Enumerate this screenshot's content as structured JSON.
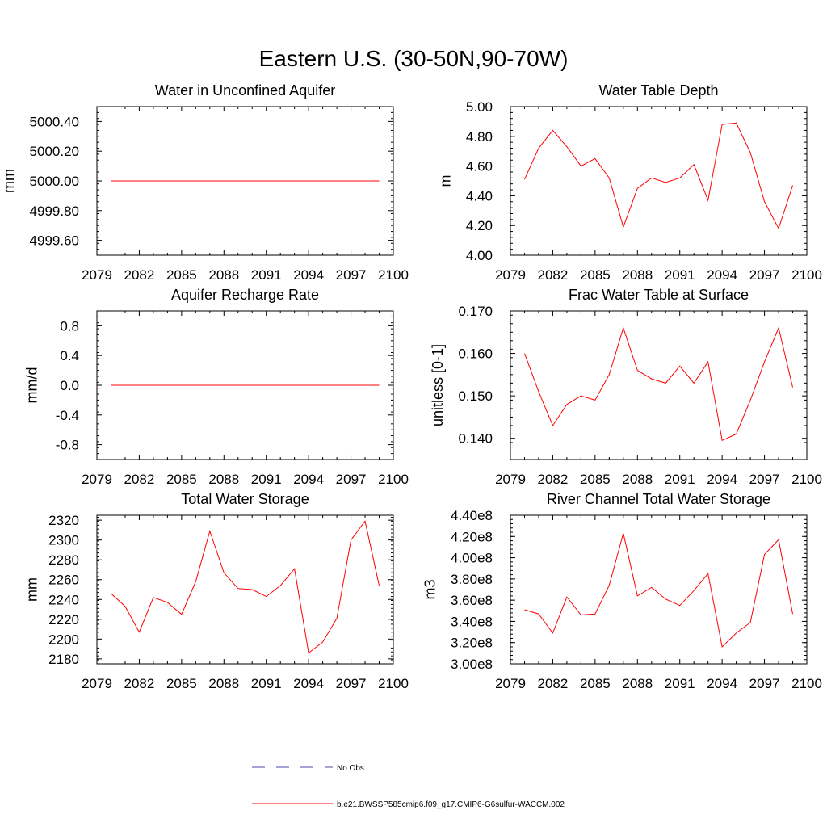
{
  "title": "Eastern U.S. (30-50N,90-70W)",
  "colors": {
    "model": "#ff0000",
    "obs": "#4a4aa8",
    "axes": "#000000"
  },
  "legend": {
    "entries": [
      {
        "label": "No Obs",
        "style": "dashed",
        "color": "#4a4aa8"
      },
      {
        "label": "b.e21.BWSSP585cmip6.f09_g17.CMIP6-G6sulfur-WACCM.002",
        "style": "solid",
        "color": "#ff0000"
      }
    ]
  },
  "chart_data": [
    {
      "id": "aquifer-water",
      "type": "line",
      "title": "Water in Unconfined Aquifer",
      "xlabel": "",
      "ylabel": "mm",
      "xlim": [
        2079,
        2100
      ],
      "xticks": [
        "2079",
        "2082",
        "2085",
        "2088",
        "2091",
        "2094",
        "2097",
        "2100"
      ],
      "ylim": [
        4999.5,
        5000.5
      ],
      "yticks": [
        "4999.60",
        "4999.80",
        "5000.00",
        "5000.20",
        "5000.40"
      ],
      "x": [
        2080,
        2081,
        2082,
        2083,
        2084,
        2085,
        2086,
        2087,
        2088,
        2089,
        2090,
        2091,
        2092,
        2093,
        2094,
        2095,
        2096,
        2097,
        2098,
        2099
      ],
      "series": [
        {
          "values": [
            5000,
            5000,
            5000,
            5000,
            5000,
            5000,
            5000,
            5000,
            5000,
            5000,
            5000,
            5000,
            5000,
            5000,
            5000,
            5000,
            5000,
            5000,
            5000,
            5000
          ]
        }
      ]
    },
    {
      "id": "water-table-depth",
      "type": "line",
      "title": "Water Table Depth",
      "xlabel": "",
      "ylabel": "m",
      "xlim": [
        2079,
        2100
      ],
      "xticks": [
        "2079",
        "2082",
        "2085",
        "2088",
        "2091",
        "2094",
        "2097",
        "2100"
      ],
      "ylim": [
        4.0,
        5.0
      ],
      "yticks": [
        "4.00",
        "4.20",
        "4.40",
        "4.60",
        "4.80",
        "5.00"
      ],
      "x": [
        2080,
        2081,
        2082,
        2083,
        2084,
        2085,
        2086,
        2087,
        2088,
        2089,
        2090,
        2091,
        2092,
        2093,
        2094,
        2095,
        2096,
        2097,
        2098,
        2099
      ],
      "series": [
        {
          "values": [
            4.51,
            4.72,
            4.84,
            4.73,
            4.6,
            4.65,
            4.52,
            4.19,
            4.45,
            4.52,
            4.49,
            4.52,
            4.61,
            4.37,
            4.88,
            4.89,
            4.69,
            4.36,
            4.18,
            4.47
          ]
        }
      ]
    },
    {
      "id": "aquifer-recharge",
      "type": "line",
      "title": "Aquifer Recharge Rate",
      "xlabel": "",
      "ylabel": "mm/d",
      "xlim": [
        2079,
        2100
      ],
      "xticks": [
        "2079",
        "2082",
        "2085",
        "2088",
        "2091",
        "2094",
        "2097",
        "2100"
      ],
      "ylim": [
        -1.0,
        1.0
      ],
      "yticks": [
        "-0.8",
        "-0.4",
        "0.0",
        "0.4",
        "0.8"
      ],
      "x": [
        2080,
        2081,
        2082,
        2083,
        2084,
        2085,
        2086,
        2087,
        2088,
        2089,
        2090,
        2091,
        2092,
        2093,
        2094,
        2095,
        2096,
        2097,
        2098,
        2099
      ],
      "series": [
        {
          "values": [
            0,
            0,
            0,
            0,
            0,
            0,
            0,
            0,
            0,
            0,
            0,
            0,
            0,
            0,
            0,
            0,
            0,
            0,
            0,
            0
          ]
        }
      ]
    },
    {
      "id": "frac-water-table",
      "type": "line",
      "title": "Frac Water Table at Surface",
      "xlabel": "",
      "ylabel": "unitless [0-1]",
      "xlim": [
        2079,
        2100
      ],
      "xticks": [
        "2079",
        "2082",
        "2085",
        "2088",
        "2091",
        "2094",
        "2097",
        "2100"
      ],
      "ylim": [
        0.135,
        0.17
      ],
      "yticks": [
        "0.140",
        "0.150",
        "0.160",
        "0.170"
      ],
      "x": [
        2080,
        2081,
        2082,
        2083,
        2084,
        2085,
        2086,
        2087,
        2088,
        2089,
        2090,
        2091,
        2092,
        2093,
        2094,
        2095,
        2096,
        2097,
        2098,
        2099
      ],
      "series": [
        {
          "values": [
            0.16,
            0.151,
            0.143,
            0.148,
            0.15,
            0.149,
            0.155,
            0.166,
            0.156,
            0.154,
            0.153,
            0.157,
            0.153,
            0.158,
            0.1395,
            0.141,
            0.149,
            0.158,
            0.166,
            0.152
          ]
        }
      ]
    },
    {
      "id": "total-water-storage",
      "type": "line",
      "title": "Total Water Storage",
      "xlabel": "",
      "ylabel": "mm",
      "xlim": [
        2079,
        2100
      ],
      "xticks": [
        "2079",
        "2082",
        "2085",
        "2088",
        "2091",
        "2094",
        "2097",
        "2100"
      ],
      "ylim": [
        2175,
        2325
      ],
      "yticks": [
        "2180",
        "2200",
        "2220",
        "2240",
        "2260",
        "2280",
        "2300",
        "2320"
      ],
      "x": [
        2080,
        2081,
        2082,
        2083,
        2084,
        2085,
        2086,
        2087,
        2088,
        2089,
        2090,
        2091,
        2092,
        2093,
        2094,
        2095,
        2096,
        2097,
        2098,
        2099
      ],
      "series": [
        {
          "values": [
            2246,
            2233,
            2207,
            2242,
            2237,
            2225,
            2258,
            2309,
            2267,
            2251,
            2250,
            2243,
            2254,
            2271,
            2186,
            2197,
            2221,
            2300,
            2319,
            2254
          ]
        }
      ]
    },
    {
      "id": "river-channel-storage",
      "type": "line",
      "title": "River Channel Total Water Storage",
      "xlabel": "",
      "ylabel": "m3",
      "xlim": [
        2079,
        2100
      ],
      "xticks": [
        "2079",
        "2082",
        "2085",
        "2088",
        "2091",
        "2094",
        "2097",
        "2100"
      ],
      "ylim": [
        300000000.0,
        440000000.0
      ],
      "yticks": [
        "3.00e8",
        "3.20e8",
        "3.40e8",
        "3.60e8",
        "3.80e8",
        "4.00e8",
        "4.20e8",
        "4.40e8"
      ],
      "x": [
        2080,
        2081,
        2082,
        2083,
        2084,
        2085,
        2086,
        2087,
        2088,
        2089,
        2090,
        2091,
        2092,
        2093,
        2094,
        2095,
        2096,
        2097,
        2098,
        2099
      ],
      "series": [
        {
          "values": [
            351000000.0,
            347000000.0,
            329000000.0,
            363000000.0,
            346000000.0,
            347000000.0,
            374000000.0,
            423000000.0,
            364000000.0,
            372000000.0,
            361000000.0,
            355000000.0,
            369000000.0,
            385000000.0,
            316000000.0,
            329000000.0,
            339000000.0,
            403000000.0,
            417000000.0,
            347000000.0
          ]
        }
      ]
    }
  ]
}
